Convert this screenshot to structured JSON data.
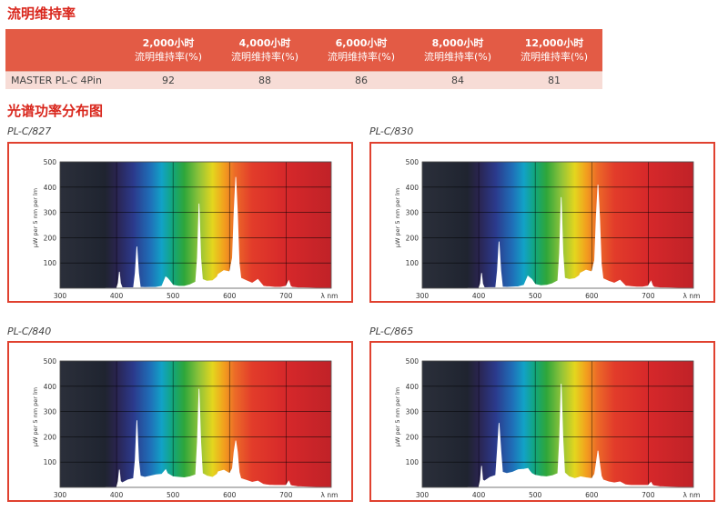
{
  "maintenance": {
    "title": "流明维持率",
    "columns": [
      {
        "hours": "2,000小时",
        "label": "流明维持率(%)"
      },
      {
        "hours": "4,000小时",
        "label": "流明维持率(%)"
      },
      {
        "hours": "6,000小时",
        "label": "流明维持率(%)"
      },
      {
        "hours": "8,000小时",
        "label": "流明维持率(%)"
      },
      {
        "hours": "12,000小时",
        "label": "流明维持率(%)"
      }
    ],
    "rows": [
      {
        "product": "MASTER PL-C 4Pin",
        "values": [
          "92",
          "88",
          "86",
          "84",
          "81"
        ]
      }
    ]
  },
  "spectrum_title": "光谱功率分布图",
  "chart_data": [
    {
      "type": "area",
      "title": "PL-C/827",
      "ylabel": "µW per 5 nm per lm",
      "xlabel": "λ nm",
      "xlim": [
        300,
        780
      ],
      "ylim": [
        0,
        500
      ],
      "xticks": [
        300,
        400,
        500,
        600,
        700
      ],
      "yticks": [
        100,
        200,
        300,
        400,
        500
      ],
      "grid": true,
      "background": "visible-spectrum",
      "x": [
        380,
        400,
        403,
        405,
        407,
        410,
        430,
        433,
        436,
        439,
        442,
        450,
        470,
        480,
        487,
        490,
        494,
        500,
        510,
        520,
        530,
        540,
        543,
        546,
        549,
        552,
        560,
        570,
        578,
        580,
        590,
        600,
        605,
        608,
        611,
        614,
        617,
        620,
        630,
        640,
        650,
        660,
        665,
        670,
        680,
        690,
        700,
        705,
        708,
        711,
        720,
        740,
        760,
        780
      ],
      "values": [
        0,
        0,
        20,
        65,
        20,
        2,
        2,
        60,
        165,
        60,
        4,
        3,
        4,
        8,
        45,
        40,
        30,
        12,
        8,
        8,
        14,
        25,
        120,
        335,
        120,
        35,
        28,
        30,
        45,
        55,
        70,
        65,
        120,
        300,
        440,
        300,
        100,
        40,
        30,
        20,
        35,
        8,
        7,
        6,
        4,
        4,
        8,
        30,
        8,
        4,
        2,
        1,
        0,
        0
      ]
    },
    {
      "type": "area",
      "title": "PL-C/830",
      "ylabel": "µW per 5 nm per lm",
      "xlabel": "λ nm",
      "xlim": [
        300,
        780
      ],
      "ylim": [
        0,
        500
      ],
      "xticks": [
        300,
        400,
        500,
        600,
        700
      ],
      "yticks": [
        100,
        200,
        300,
        400,
        500
      ],
      "grid": true,
      "background": "visible-spectrum",
      "x": [
        380,
        400,
        403,
        405,
        407,
        410,
        430,
        433,
        436,
        439,
        442,
        450,
        470,
        480,
        487,
        490,
        494,
        500,
        510,
        520,
        530,
        540,
        543,
        546,
        549,
        552,
        560,
        570,
        578,
        580,
        590,
        600,
        605,
        608,
        611,
        614,
        617,
        620,
        630,
        640,
        650,
        660,
        665,
        670,
        680,
        690,
        700,
        705,
        708,
        711,
        720,
        740,
        760,
        780
      ],
      "values": [
        0,
        0,
        18,
        60,
        18,
        2,
        3,
        70,
        185,
        70,
        5,
        4,
        6,
        12,
        48,
        42,
        35,
        15,
        10,
        12,
        18,
        30,
        140,
        360,
        140,
        40,
        35,
        38,
        50,
        60,
        72,
        65,
        110,
        280,
        410,
        280,
        95,
        38,
        28,
        20,
        32,
        9,
        8,
        7,
        5,
        5,
        9,
        28,
        9,
        4,
        2,
        1,
        0,
        0
      ]
    },
    {
      "type": "area",
      "title": "PL-C/840",
      "ylabel": "µW per 5 nm per lm",
      "xlabel": "λ nm",
      "xlim": [
        300,
        780
      ],
      "ylim": [
        0,
        500
      ],
      "xticks": [
        300,
        400,
        500,
        600,
        700
      ],
      "yticks": [
        100,
        200,
        300,
        400,
        500
      ],
      "grid": true,
      "background": "visible-spectrum",
      "x": [
        380,
        400,
        403,
        405,
        407,
        410,
        420,
        430,
        433,
        436,
        439,
        442,
        450,
        460,
        470,
        480,
        487,
        490,
        494,
        500,
        510,
        520,
        530,
        540,
        543,
        546,
        549,
        552,
        560,
        570,
        578,
        580,
        590,
        600,
        605,
        608,
        611,
        614,
        617,
        620,
        630,
        640,
        650,
        660,
        665,
        670,
        680,
        690,
        700,
        705,
        708,
        711,
        720,
        740,
        760,
        780
      ],
      "values": [
        0,
        0,
        25,
        70,
        25,
        18,
        30,
        35,
        110,
        265,
        110,
        45,
        40,
        45,
        50,
        52,
        70,
        55,
        50,
        42,
        40,
        38,
        42,
        50,
        180,
        390,
        180,
        55,
        45,
        40,
        52,
        62,
        68,
        55,
        75,
        140,
        185,
        140,
        60,
        35,
        28,
        20,
        25,
        12,
        10,
        9,
        8,
        8,
        8,
        25,
        8,
        6,
        3,
        1,
        0,
        0
      ]
    },
    {
      "type": "area",
      "title": "PL-C/865",
      "ylabel": "µW per 5 nm per lm",
      "xlabel": "λ nm",
      "xlim": [
        300,
        780
      ],
      "ylim": [
        0,
        500
      ],
      "xticks": [
        300,
        400,
        500,
        600,
        700
      ],
      "yticks": [
        100,
        200,
        300,
        400,
        500
      ],
      "grid": true,
      "background": "visible-spectrum",
      "x": [
        380,
        400,
        403,
        405,
        407,
        410,
        420,
        430,
        433,
        436,
        439,
        442,
        450,
        460,
        470,
        480,
        487,
        490,
        494,
        500,
        510,
        520,
        530,
        540,
        543,
        546,
        549,
        552,
        560,
        570,
        578,
        580,
        590,
        600,
        605,
        608,
        611,
        614,
        617,
        620,
        630,
        640,
        650,
        660,
        665,
        670,
        680,
        690,
        700,
        705,
        708,
        711,
        720,
        740,
        760,
        780
      ],
      "values": [
        0,
        0,
        30,
        85,
        30,
        25,
        40,
        48,
        150,
        255,
        150,
        60,
        55,
        60,
        70,
        72,
        75,
        65,
        55,
        48,
        44,
        42,
        46,
        55,
        190,
        410,
        190,
        58,
        42,
        35,
        40,
        42,
        38,
        35,
        52,
        95,
        145,
        95,
        45,
        30,
        22,
        18,
        22,
        10,
        9,
        8,
        8,
        8,
        8,
        20,
        8,
        6,
        3,
        1,
        0,
        0
      ]
    }
  ]
}
